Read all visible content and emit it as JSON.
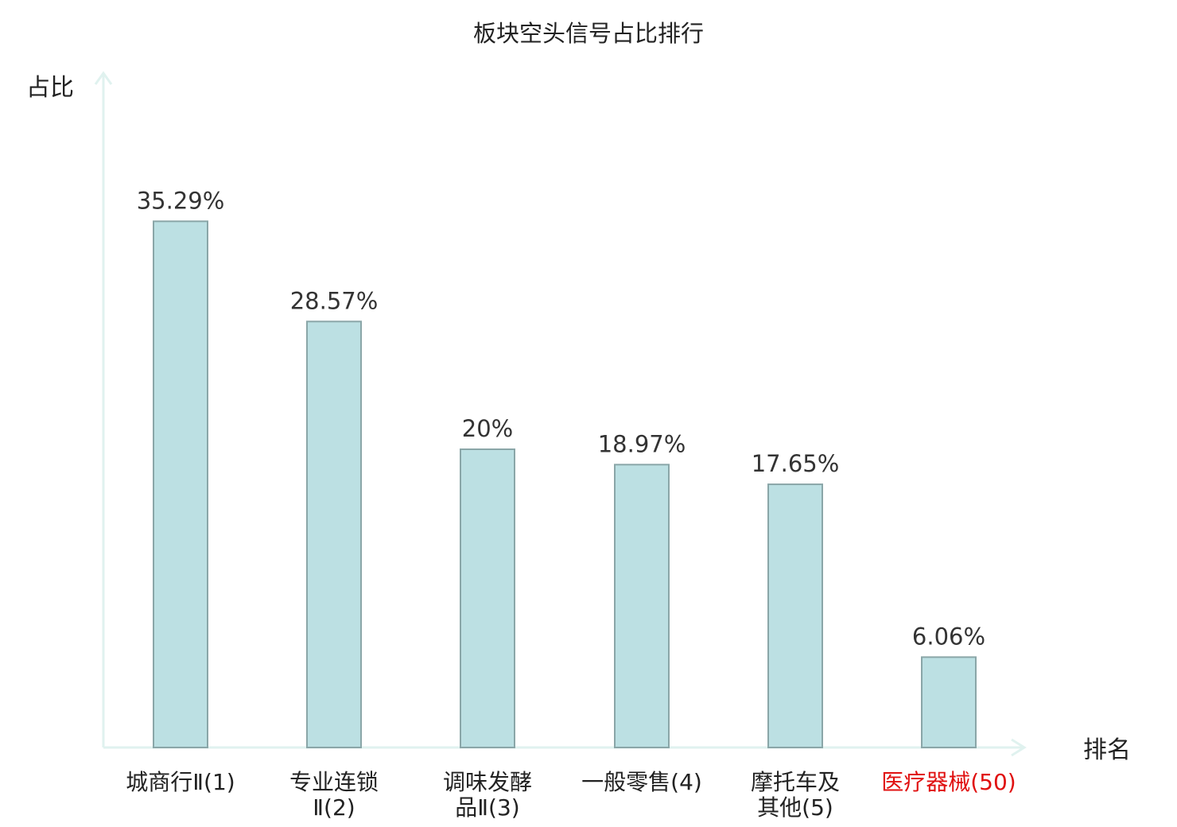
{
  "chart_data": {
    "type": "bar",
    "title": "板块空头信号占比排行",
    "ylabel": "占比",
    "xlabel": "排名",
    "categories": [
      "城商行Ⅱ(1)",
      "专业连锁Ⅱ(2)",
      "调味发酵品Ⅱ(3)",
      "一般零售(4)",
      "摩托车及其他(5)",
      "医疗器械(50)"
    ],
    "category_label_lines": [
      [
        "城商行Ⅱ(1)"
      ],
      [
        "专业连锁",
        "Ⅱ(2)"
      ],
      [
        "调味发酵",
        "品Ⅱ(3)"
      ],
      [
        "一般零售(4)"
      ],
      [
        "摩托车及",
        "其他(5)"
      ],
      [
        "医疗器械(50)"
      ]
    ],
    "values": [
      35.29,
      28.57,
      20,
      18.97,
      17.65,
      6.06
    ],
    "value_labels": [
      "35.29%",
      "28.57%",
      "20%",
      "18.97%",
      "17.65%",
      "6.06%"
    ],
    "highlight_index": 5,
    "ylim": [
      0,
      40
    ],
    "grid": false,
    "colors": {
      "bar_fill": "#bce0e3",
      "bar_stroke": "#8aa6a8",
      "axis": "#e0f2ef",
      "text": "#333333",
      "label_text": "#222222",
      "highlight_text": "#e01010"
    }
  }
}
